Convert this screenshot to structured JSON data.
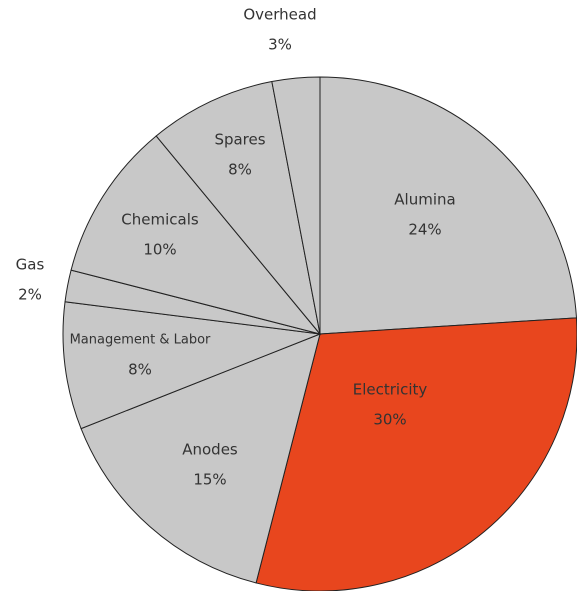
{
  "chart_data": {
    "type": "pie",
    "categories": [
      "Alumina",
      "Electricity",
      "Anodes",
      "Management & Labor",
      "Gas",
      "Chemicals",
      "Spares",
      "Overhead"
    ],
    "values": [
      24,
      30,
      15,
      8,
      2,
      10,
      8,
      3
    ],
    "value_labels": [
      "24%",
      "30%",
      "15%",
      "8%",
      "2%",
      "10%",
      "8%",
      "3%"
    ],
    "colors": [
      "#c8c8c8",
      "#e8461e",
      "#c8c8c8",
      "#c8c8c8",
      "#c8c8c8",
      "#c8c8c8",
      "#c8c8c8",
      "#c8c8c8"
    ]
  }
}
